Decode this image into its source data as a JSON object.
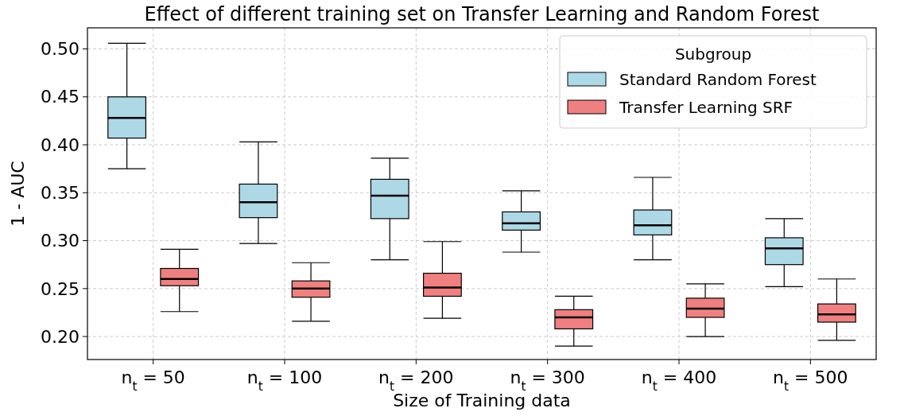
{
  "chart_data": {
    "type": "box",
    "title": "Effect of different training set on Transfer Learning and Random Forest",
    "xlabel": "Size of Training data",
    "ylabel": "1 - AUC",
    "legend_title": "Subgroup",
    "legend": "top right",
    "grid": true,
    "categories": [
      "n$_{t}$ = 50",
      "n$_{t}$ = 100",
      "n$_{t}$ = 200",
      "n$_{t}$ = 300",
      "n$_{t}$ = 400",
      "n$_{t}$ = 500"
    ],
    "ylim": [
      0.176,
      0.522
    ],
    "yticks": [
      {
        "value": 0.2,
        "label": "0.20"
      },
      {
        "value": 0.25,
        "label": "0.25"
      },
      {
        "value": 0.3,
        "label": "0.30"
      },
      {
        "value": 0.35,
        "label": "0.35"
      },
      {
        "value": 0.4,
        "label": "0.40"
      },
      {
        "value": 0.45,
        "label": "0.45"
      },
      {
        "value": 0.5,
        "label": "0.50"
      }
    ],
    "series": [
      {
        "name": "Standard Random Forest",
        "color": "#add8e6",
        "boxes": [
          {
            "low": 0.375,
            "q1": 0.407,
            "median": 0.428,
            "q3": 0.45,
            "high": 0.506
          },
          {
            "low": 0.297,
            "q1": 0.324,
            "median": 0.34,
            "q3": 0.359,
            "high": 0.403
          },
          {
            "low": 0.28,
            "q1": 0.323,
            "median": 0.347,
            "q3": 0.364,
            "high": 0.386
          },
          {
            "low": 0.288,
            "q1": 0.311,
            "median": 0.318,
            "q3": 0.33,
            "high": 0.352
          },
          {
            "low": 0.28,
            "q1": 0.306,
            "median": 0.316,
            "q3": 0.332,
            "high": 0.366
          },
          {
            "low": 0.252,
            "q1": 0.275,
            "median": 0.292,
            "q3": 0.303,
            "high": 0.323
          }
        ]
      },
      {
        "name": "Transfer Learning SRF",
        "color": "#f08080",
        "boxes": [
          {
            "low": 0.226,
            "q1": 0.253,
            "median": 0.26,
            "q3": 0.271,
            "high": 0.291
          },
          {
            "low": 0.216,
            "q1": 0.241,
            "median": 0.25,
            "q3": 0.258,
            "high": 0.277
          },
          {
            "low": 0.219,
            "q1": 0.242,
            "median": 0.251,
            "q3": 0.266,
            "high": 0.299
          },
          {
            "low": 0.19,
            "q1": 0.208,
            "median": 0.22,
            "q3": 0.228,
            "high": 0.242
          },
          {
            "low": 0.2,
            "q1": 0.22,
            "median": 0.229,
            "q3": 0.24,
            "high": 0.255
          },
          {
            "low": 0.196,
            "q1": 0.215,
            "median": 0.223,
            "q3": 0.234,
            "high": 0.26
          }
        ]
      }
    ]
  }
}
